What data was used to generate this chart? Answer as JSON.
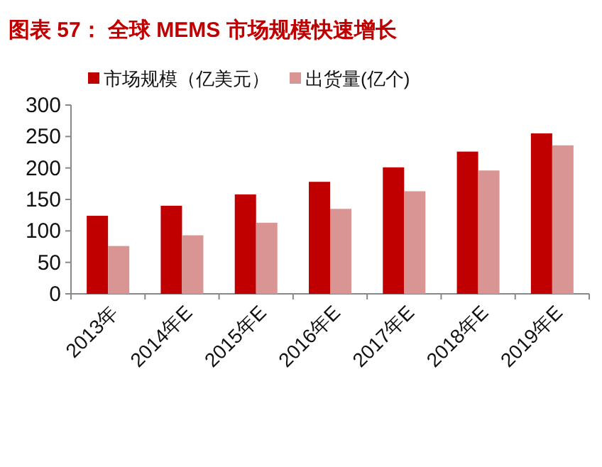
{
  "chart_data": {
    "type": "bar",
    "title": "图表 57：  全球 MEMS 市场规模快速增长",
    "categories": [
      "2013年",
      "2014年E",
      "2015年E",
      "2016年E",
      "2017年E",
      "2018年E",
      "2019年E"
    ],
    "series": [
      {
        "name": "市场规模（亿美元）",
        "color": "#c00000",
        "values": [
          124,
          140,
          158,
          178,
          201,
          226,
          255
        ]
      },
      {
        "name": "出货量(亿个)",
        "color": "#d99594",
        "values": [
          76,
          93,
          113,
          135,
          163,
          196,
          236
        ]
      }
    ],
    "ylim": [
      0,
      300
    ],
    "yticks": [
      0,
      50,
      100,
      150,
      200,
      250,
      300
    ],
    "grid": false,
    "legend": "top"
  }
}
